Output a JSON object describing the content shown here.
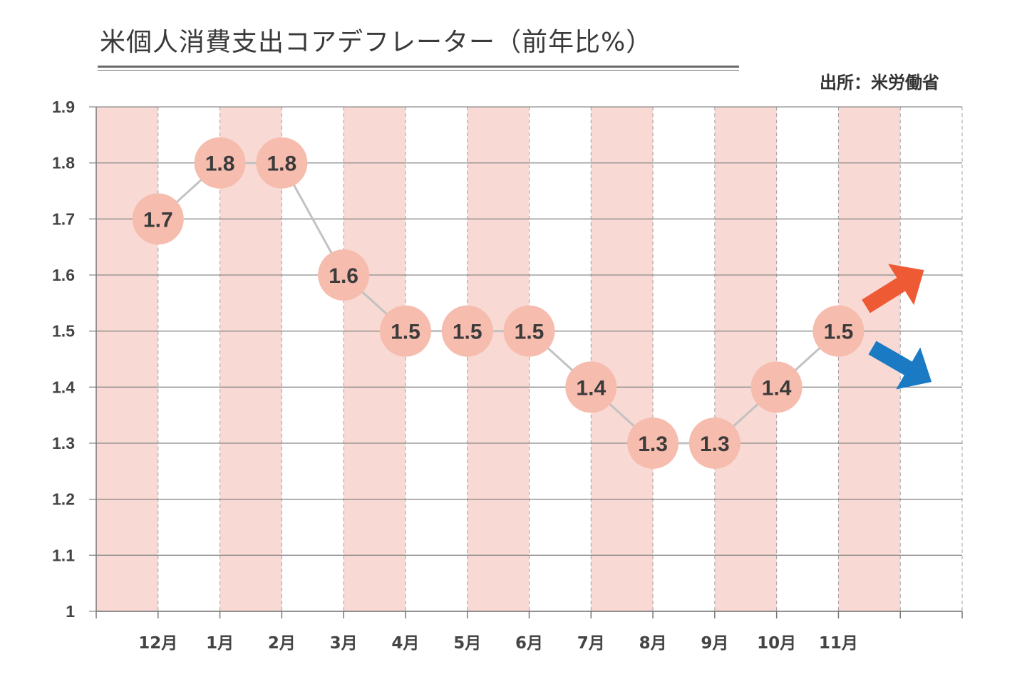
{
  "header": {
    "title": "米個人消費支出コアデフレーター（前年比%）",
    "source": "出所：米労働省"
  },
  "colors": {
    "band": "#f9d9d3",
    "marker": "#f6bcad",
    "line": "#c2c2c2",
    "grid": "#8c8c8c",
    "arrow_up": "#ee5a33",
    "arrow_down": "#1a7bc4"
  },
  "icons": [
    "arrow-up-right-icon",
    "arrow-down-right-icon"
  ],
  "chart_data": {
    "type": "line",
    "title": "米個人消費支出コアデフレーター（前年比%）",
    "categories": [
      "12月",
      "1月",
      "2月",
      "3月",
      "4月",
      "5月",
      "6月",
      "7月",
      "8月",
      "9月",
      "10月",
      "11月"
    ],
    "values": [
      1.7,
      1.8,
      1.8,
      1.6,
      1.5,
      1.5,
      1.5,
      1.4,
      1.3,
      1.3,
      1.4,
      1.5
    ],
    "value_labels": [
      "1.7",
      "1.8",
      "1.8",
      "1.6",
      "1.5",
      "1.5",
      "1.5",
      "1.4",
      "1.3",
      "1.3",
      "1.4",
      "1.5"
    ],
    "ylim": [
      1,
      1.9
    ],
    "yticks": [
      1,
      1.1,
      1.2,
      1.3,
      1.4,
      1.5,
      1.6,
      1.7,
      1.8,
      1.9
    ],
    "ytick_labels": [
      "1",
      "1.1",
      "1.2",
      "1.3",
      "1.4",
      "1.5",
      "1.6",
      "1.7",
      "1.8",
      "1.9"
    ],
    "grid": true,
    "legend": "none"
  }
}
